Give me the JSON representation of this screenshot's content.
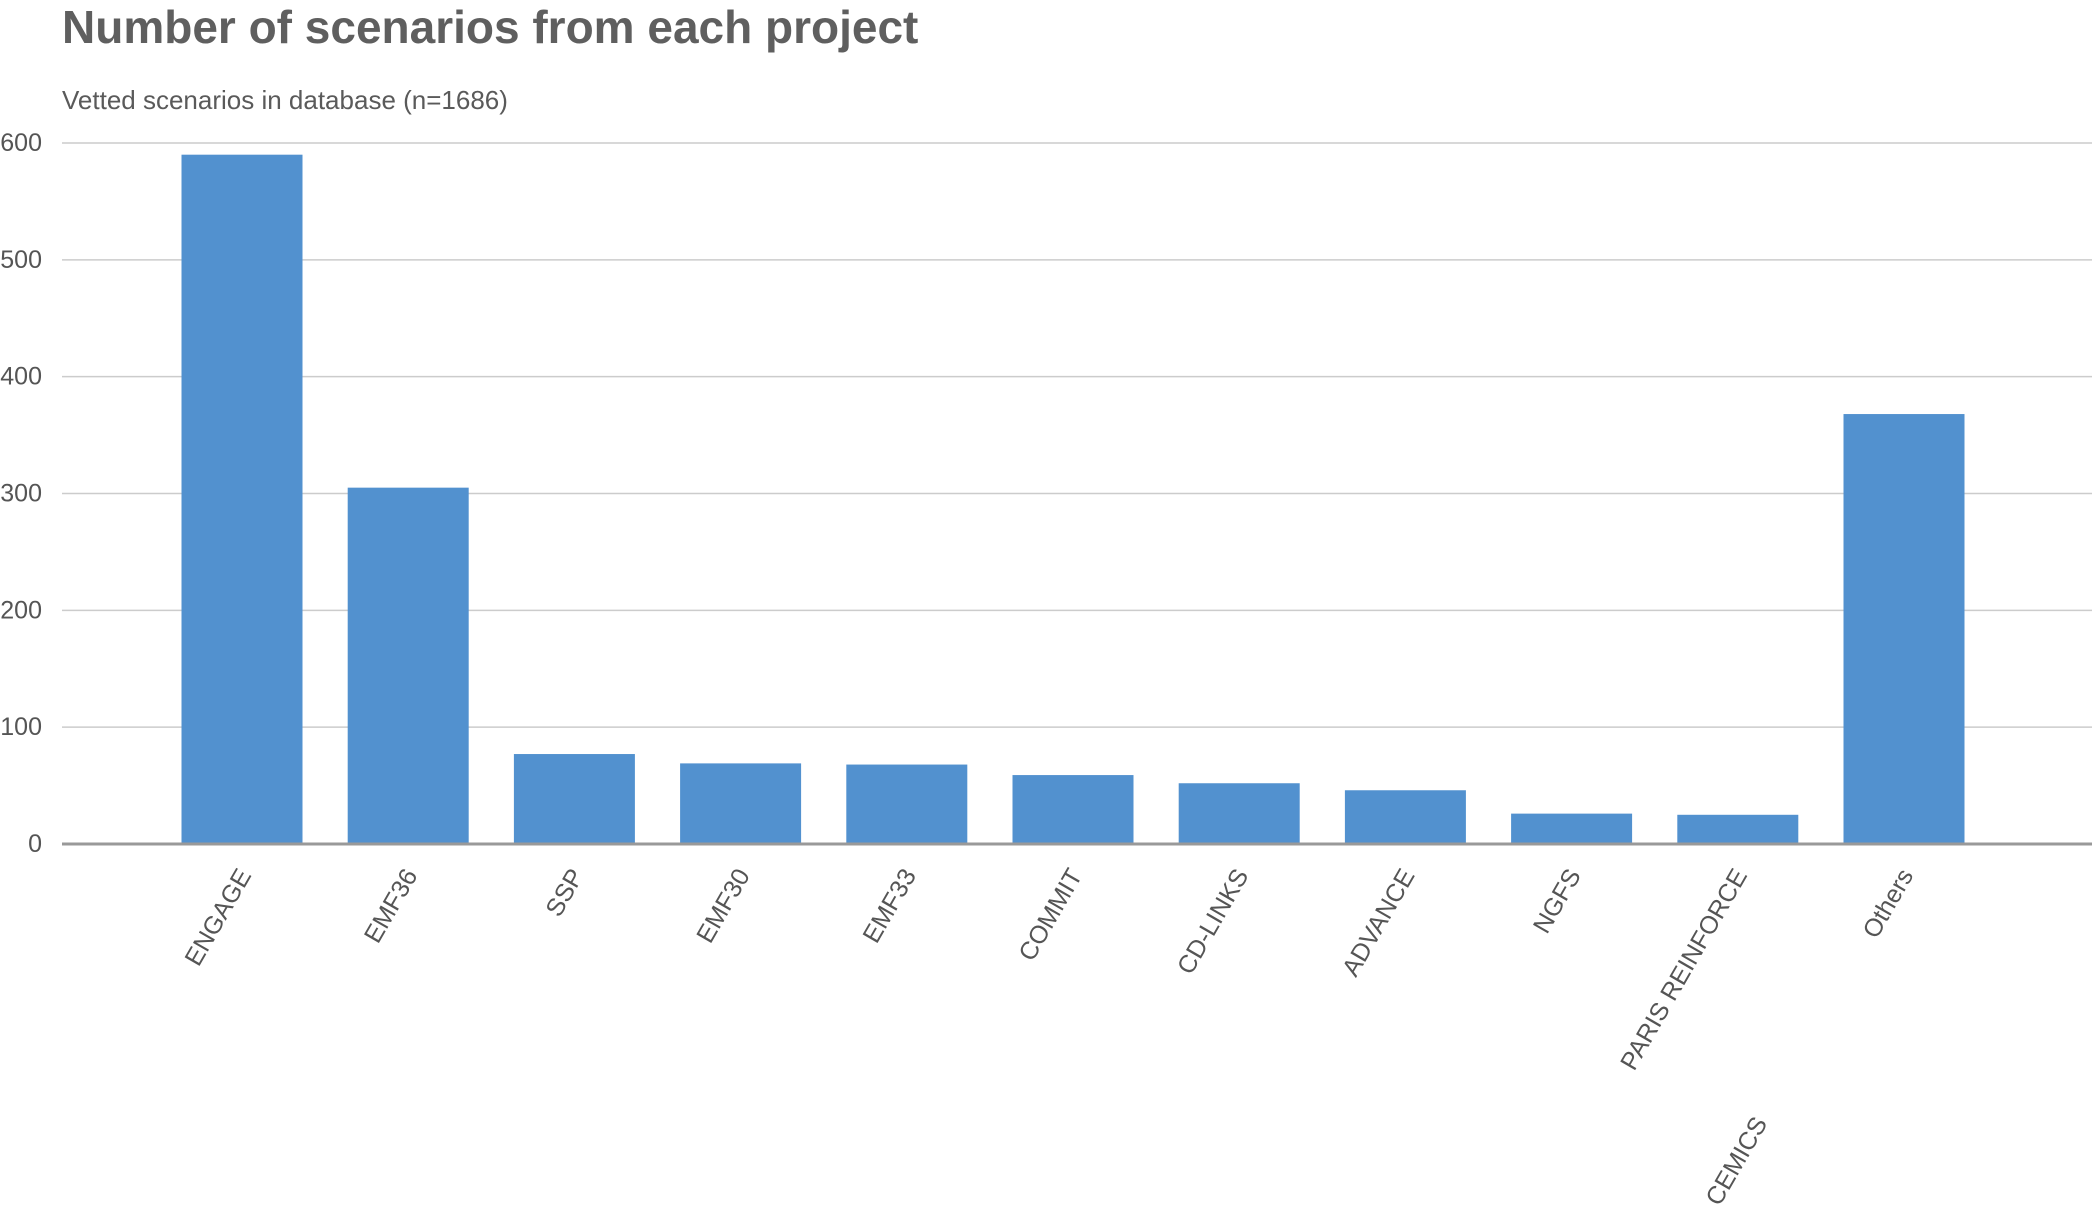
{
  "chart_data": {
    "type": "bar",
    "title": "Number of scenarios from each project",
    "subtitle": "Vetted scenarios in database (n=1686)",
    "xlabel": "",
    "ylabel": "",
    "ylim": [
      0,
      600
    ],
    "yticks": [
      0,
      100,
      200,
      300,
      400,
      500,
      600
    ],
    "grid": true,
    "bar_color": "#5291cf",
    "categories": [
      "ENGAGE",
      "EMF36",
      "SSP",
      "EMF30",
      "EMF33",
      "COMMIT",
      "CD-LINKS",
      "ADVANCE",
      "NGFS",
      "PARIS REINFORCE",
      "Others"
    ],
    "values": [
      590,
      305,
      77,
      69,
      68,
      59,
      52,
      46,
      26,
      25,
      368
    ],
    "extra_label": "CEMICS"
  }
}
